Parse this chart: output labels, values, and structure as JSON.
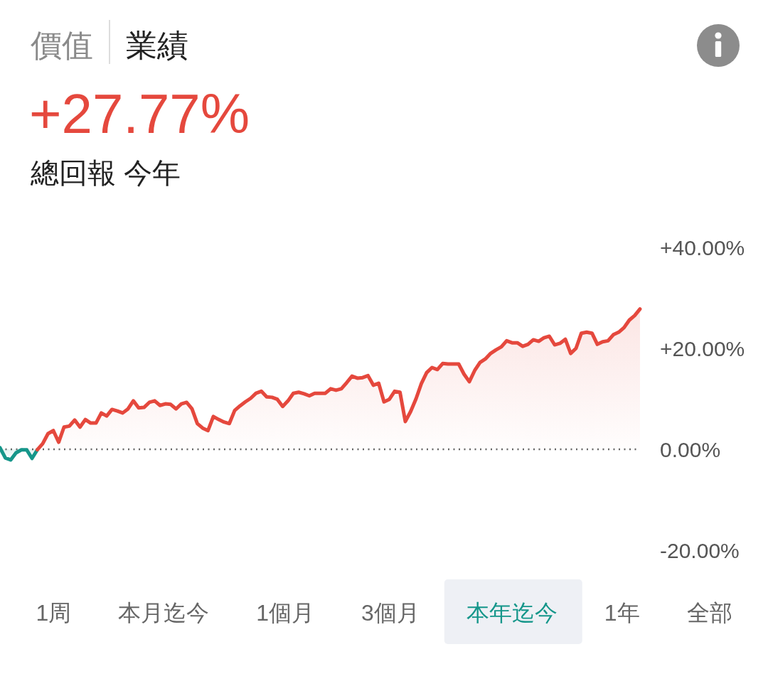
{
  "chart_data": {
    "type": "area",
    "title": "+27.77%",
    "subtitle": "總回報 今年",
    "annotations": [
      "價值",
      "業績",
      "1周",
      "本月迄今",
      "1個月",
      "3個月",
      "本年迄今",
      "1年",
      "全部"
    ],
    "categories": [
      null,
      null,
      null,
      null,
      null,
      null,
      null,
      null,
      null,
      null,
      null,
      null,
      null,
      null,
      null,
      null,
      null,
      null,
      null,
      null,
      null,
      null,
      null,
      null,
      null,
      null,
      null,
      null,
      null,
      null,
      null,
      null,
      null,
      null,
      null,
      null,
      null,
      null,
      null,
      null,
      null,
      null,
      null,
      null,
      null,
      null,
      null,
      null,
      null,
      null,
      null,
      null,
      null,
      null,
      null,
      null,
      null,
      null,
      null,
      null,
      null,
      null,
      null,
      null,
      null,
      null,
      null,
      null,
      null,
      null,
      null,
      null,
      null,
      null,
      null,
      null,
      null,
      null,
      null,
      null,
      null,
      null,
      null,
      null,
      null,
      null,
      null,
      null,
      null,
      null,
      null,
      null,
      null,
      null,
      null,
      null,
      null,
      null,
      null,
      null,
      null,
      null,
      null,
      null,
      null,
      null,
      null,
      null,
      null,
      null,
      null,
      null,
      null,
      null,
      null,
      null,
      null,
      null,
      null,
      null,
      null
    ],
    "series": [
      {
        "color": "#15968a",
        "values": [
          0.3,
          -1.7,
          -2.1,
          -0.7,
          -0.1,
          -0.1,
          -1.8,
          -0.1,
          null,
          null,
          null,
          null,
          null,
          null,
          null,
          null,
          null,
          null,
          null,
          null,
          null,
          null,
          null,
          null,
          null,
          null,
          null,
          null,
          null,
          null,
          null,
          null,
          null,
          null,
          null,
          null,
          null,
          null,
          null,
          null,
          null,
          null,
          null,
          null,
          null,
          null,
          null,
          null,
          null,
          null,
          null,
          null,
          null,
          null,
          null,
          null,
          null,
          null,
          null,
          null,
          null,
          null,
          null,
          null,
          null,
          null,
          null,
          null,
          null,
          null,
          null,
          null,
          null,
          null,
          null,
          null,
          null,
          null,
          null,
          null,
          null,
          null,
          null,
          null,
          null,
          null,
          null,
          null,
          null,
          null,
          null,
          null,
          null,
          null,
          null,
          null,
          null,
          null,
          null,
          null,
          null,
          null,
          null,
          null,
          null,
          null,
          null,
          null,
          null,
          null,
          null,
          null,
          null,
          null,
          null,
          null,
          null,
          null,
          null,
          null,
          null
        ]
      },
      {
        "color": "#e5483d",
        "values": [
          null,
          null,
          null,
          null,
          null,
          null,
          null,
          -0.1,
          1.1,
          3.1,
          3.7,
          1.4,
          4.4,
          4.6,
          5.8,
          4.4,
          5.9,
          5.2,
          5.2,
          7.2,
          6.6,
          7.9,
          7.6,
          7.2,
          8.0,
          9.6,
          8.2,
          8.3,
          9.3,
          9.6,
          8.7,
          9.0,
          8.9,
          8.0,
          9.0,
          9.3,
          8.0,
          5.1,
          4.2,
          3.7,
          6.5,
          5.9,
          5.4,
          5.1,
          7.7,
          8.6,
          9.4,
          10.1,
          11.1,
          11.5,
          10.4,
          10.3,
          9.9,
          8.5,
          9.6,
          11.1,
          11.3,
          11.0,
          10.6,
          11.1,
          11.1,
          11.1,
          12.0,
          11.7,
          12.0,
          13.2,
          14.5,
          14.1,
          14.2,
          14.6,
          12.7,
          13.1,
          9.4,
          9.9,
          11.5,
          11.3,
          5.5,
          7.5,
          10.0,
          13.0,
          15.2,
          16.2,
          15.8,
          17.0,
          16.9,
          16.9,
          16.9,
          14.9,
          13.4,
          15.6,
          17.2,
          17.9,
          19.0,
          19.7,
          20.3,
          21.5,
          21.1,
          21.1,
          20.4,
          20.8,
          21.7,
          21.4,
          22.1,
          22.4,
          20.7,
          21.0,
          21.8,
          19.0,
          20.0,
          23.0,
          23.2,
          23.0,
          20.8,
          21.3,
          21.5,
          22.7,
          23.2,
          24.1,
          25.6,
          26.5,
          27.8
        ]
      }
    ],
    "ylim": [
      -20,
      40
    ],
    "yticks": [
      {
        "value": -20,
        "label": "-20.00%"
      },
      {
        "value": 0,
        "label": "0.00%"
      },
      {
        "value": 20,
        "label": "+20.00%"
      },
      {
        "value": 40,
        "label": "+40.00%"
      }
    ],
    "tick_labels": "y",
    "ref_lines": [
      {
        "axis": "y",
        "value": 0,
        "color": "#666666",
        "line_style": "dotted"
      }
    ]
  }
}
